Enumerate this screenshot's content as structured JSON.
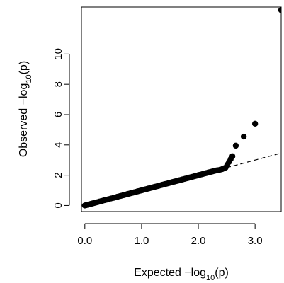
{
  "chart_data": {
    "type": "scatter",
    "xlabel": {
      "prefix": "Expected −log",
      "sub": "10",
      "suffix": "(p)"
    },
    "ylabel": {
      "prefix": "Observed −log",
      "sub": "10",
      "suffix": "(p)"
    },
    "xlim": [
      -0.06,
      3.46
    ],
    "ylim": [
      -0.4,
      13.1
    ],
    "x_ticks": [
      0.0,
      1.0,
      2.0,
      3.0
    ],
    "x_tick_labels": [
      "0.0",
      "1.0",
      "2.0",
      "3.0"
    ],
    "y_ticks": [
      0,
      2,
      4,
      6,
      8,
      10
    ],
    "y_tick_labels": [
      "0",
      "2",
      "4",
      "6",
      "8",
      "10"
    ],
    "grid": false,
    "legend": "none",
    "reference_line": {
      "style": "dashed",
      "from": [
        2.5,
        2.5
      ],
      "to": [
        3.46,
        3.46
      ]
    },
    "series": [
      {
        "points": {
          "x": [
            0.0,
            0.02,
            0.04,
            0.06,
            0.08,
            0.1,
            0.12,
            0.14,
            0.16,
            0.18,
            0.2,
            0.23,
            0.26,
            0.29,
            0.32,
            0.35,
            0.38,
            0.42,
            0.46,
            0.5,
            0.55,
            0.6,
            0.65,
            0.7,
            0.75,
            0.8,
            0.85,
            0.9,
            0.95,
            1.0,
            1.05,
            1.1,
            1.15,
            1.2,
            1.25,
            1.3,
            1.35,
            1.4,
            1.45,
            1.5,
            1.55,
            1.6,
            1.65,
            1.7,
            1.75,
            1.8,
            1.85,
            1.9,
            1.95,
            2.0,
            2.05,
            2.1,
            2.15,
            2.2,
            2.25,
            2.3,
            2.35,
            2.42,
            2.48,
            2.6,
            2.66,
            2.8,
            3.0,
            3.46
          ],
          "y": [
            0.0,
            0.02,
            0.04,
            0.06,
            0.08,
            0.1,
            0.12,
            0.14,
            0.16,
            0.18,
            0.2,
            0.23,
            0.26,
            0.29,
            0.32,
            0.35,
            0.38,
            0.42,
            0.46,
            0.5,
            0.55,
            0.6,
            0.65,
            0.7,
            0.75,
            0.8,
            0.85,
            0.9,
            0.95,
            1.0,
            1.05,
            1.1,
            1.15,
            1.2,
            1.25,
            1.3,
            1.35,
            1.4,
            1.45,
            1.5,
            1.55,
            1.6,
            1.65,
            1.7,
            1.75,
            1.8,
            1.85,
            1.9,
            1.95,
            2.0,
            2.05,
            2.1,
            2.15,
            2.2,
            2.25,
            2.3,
            2.33,
            2.4,
            2.5,
            3.25,
            3.95,
            4.55,
            5.4,
            12.9
          ]
        }
      }
    ]
  }
}
